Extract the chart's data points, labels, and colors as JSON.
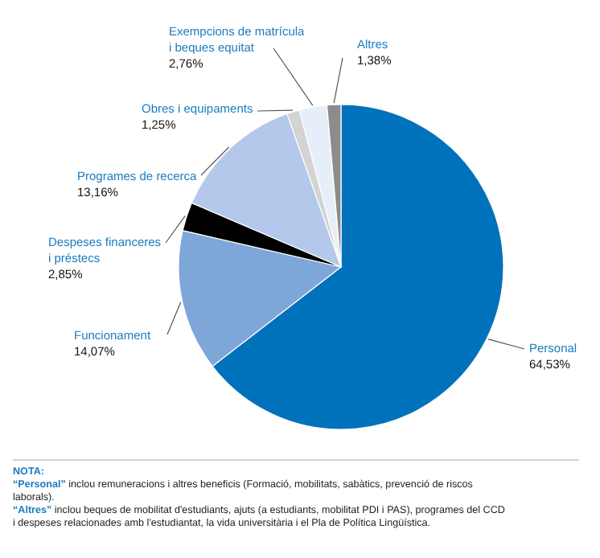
{
  "chart_data": {
    "type": "pie",
    "categories": [
      "Personal",
      "Funcionament",
      "Despeses financeres i préstecs",
      "Programes de recerca",
      "Obres i equipaments",
      "Exempcions de matrícula i beques equitat",
      "Altres"
    ],
    "values": [
      64.53,
      14.07,
      2.85,
      13.16,
      1.25,
      2.76,
      1.38
    ],
    "value_labels": [
      "64,53%",
      "14,07%",
      "2,85%",
      "13,16%",
      "1,25%",
      "2,76%",
      "1,38%"
    ],
    "colors": [
      "#0072bb",
      "#7fa6d9",
      "#000000",
      "#b3c8eb",
      "#d3d3d3",
      "#e6eef9",
      "#8c8c8c"
    ],
    "annotations": [
      "NOTA:",
      "“Personal” inclou remuneracions i altres beneficis (Formació, mobilitats, sabàtics, prevenció de riscos laborals).",
      "“Altres” inclou beques de mobilitat d'estudiants, ajuts (a estudiants, mobilitat PDI i PAS), programes del CCD i despeses relacionades amb l'estudiantat, la vida universitària i el Pla de Política Lingüística."
    ]
  }
}
